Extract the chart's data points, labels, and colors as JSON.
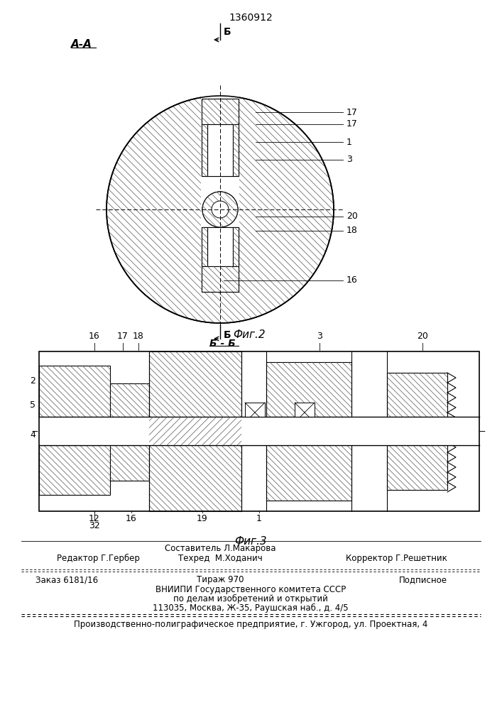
{
  "patent_number": "1360912",
  "fig2_label": "Фиг.2",
  "fig3_label": "Фиг.3",
  "section_aa": "А-А",
  "section_bb": "Б - Б",
  "label_b": "Б",
  "editor_line": "Редактор Г.Гербер",
  "composer_line": "Составитель Л.Макарова",
  "techred_line": "Техред  М.Ходанич",
  "corrector_line": "Корректор Г.Решетник",
  "order_line": "Заказ 6181/16",
  "tirazh_line": "Тираж 970",
  "podpisnoe_line": "Подписное",
  "vniipи_line1": "ВНИИПИ Государственного комитета СССР",
  "vniipи_line2": "по делам изобретений и открытий",
  "vniipи_line3": "113035, Москва, Ж-35, Раушская наб., д. 4/5",
  "enterprise_line": "Производственно-полиграфическое предприятие, г. Ужгород, ул. Проектная, 4",
  "bg_color": "#ffffff"
}
